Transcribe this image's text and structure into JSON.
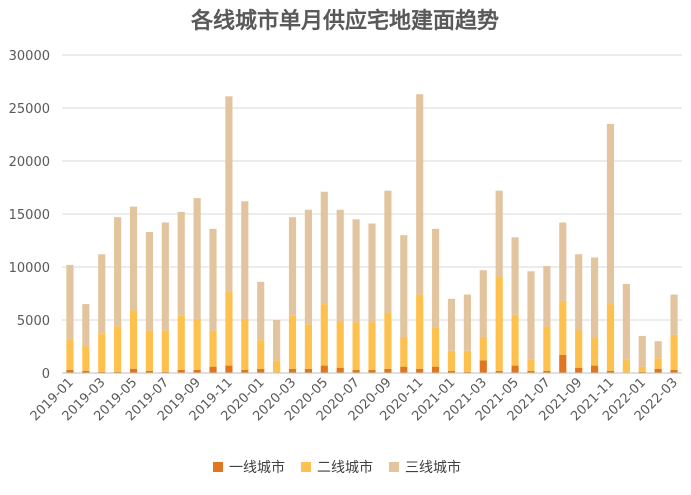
{
  "chart_data": {
    "type": "bar",
    "stacked": true,
    "title": "各线城市单月供应宅地建面趋势",
    "xlabel": "",
    "ylabel": "",
    "ylim": [
      0,
      30000
    ],
    "yticks": [
      0,
      5000,
      10000,
      15000,
      20000,
      25000,
      30000
    ],
    "grid": true,
    "legend": "bottom",
    "categories": [
      "2019-01",
      "2019-02",
      "2019-03",
      "2019-04",
      "2019-05",
      "2019-06",
      "2019-07",
      "2019-08",
      "2019-09",
      "2019-10",
      "2019-11",
      "2019-12",
      "2020-01",
      "2020-02",
      "2020-03",
      "2020-04",
      "2020-05",
      "2020-06",
      "2020-07",
      "2020-08",
      "2020-09",
      "2020-10",
      "2020-11",
      "2020-12",
      "2021-01",
      "2021-02",
      "2021-03",
      "2021-04",
      "2021-05",
      "2021-06",
      "2021-07",
      "2021-08",
      "2021-09",
      "2021-10",
      "2021-11",
      "2021-12",
      "2022-01",
      "2022-02",
      "2022-03"
    ],
    "xtick_labels": [
      "2019-01",
      "2019-03",
      "2019-05",
      "2019-07",
      "2019-09",
      "2019-11",
      "2020-01",
      "2020-03",
      "2020-05",
      "2020-07",
      "2020-09",
      "2020-11",
      "2021-01",
      "2021-03",
      "2021-05",
      "2021-07",
      "2021-09",
      "2021-11",
      "2022-01",
      "2022-03"
    ],
    "series": [
      {
        "name": "一线城市",
        "color": "#e0761f",
        "values": [
          300,
          200,
          100,
          100,
          400,
          200,
          100,
          300,
          300,
          600,
          700,
          300,
          400,
          0,
          400,
          400,
          700,
          500,
          300,
          300,
          400,
          600,
          400,
          600,
          200,
          100,
          1200,
          200,
          700,
          200,
          200,
          1700,
          500,
          700,
          200,
          0,
          100,
          400,
          300
        ]
      },
      {
        "name": "二线城市",
        "color": "#ffc14d",
        "values": [
          2900,
          2300,
          3600,
          4300,
          5500,
          3800,
          3900,
          5100,
          4800,
          3400,
          7000,
          4800,
          2700,
          1200,
          5000,
          4200,
          5800,
          4400,
          4500,
          4500,
          5300,
          2800,
          7000,
          3700,
          1900,
          2000,
          2200,
          8900,
          4800,
          1100,
          4200,
          5100,
          3600,
          2600,
          6300,
          1300,
          500,
          1000,
          3300
        ]
      },
      {
        "name": "三线城市",
        "color": "#e2c59f",
        "values": [
          7000,
          4000,
          7500,
          10300,
          9800,
          9300,
          10200,
          9800,
          11400,
          9600,
          18400,
          11100,
          5500,
          3800,
          9300,
          10800,
          10600,
          10500,
          9700,
          9300,
          11500,
          9600,
          18900,
          9300,
          4900,
          5300,
          6300,
          8100,
          7300,
          8300,
          5700,
          7400,
          7100,
          7600,
          17000,
          7100,
          2900,
          1600,
          3800
        ]
      }
    ]
  }
}
